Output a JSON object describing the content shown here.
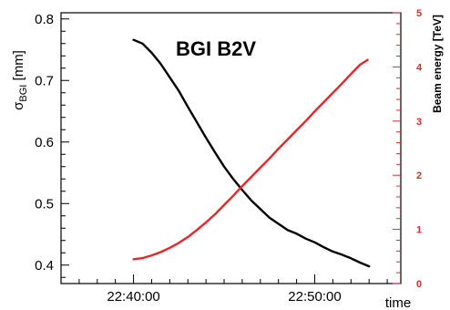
{
  "chart_data": {
    "type": "line",
    "title": "BGI B2V",
    "xlabel": "time",
    "ylabel_main": "σ",
    "ylabel_sub": "BGI",
    "ylabel_unit": " [mm]",
    "y2label": "Beam energy [TeV]",
    "x_ticks": [
      {
        "value": "22:40:00",
        "label": "22:40:00"
      },
      {
        "value": "22:50:00",
        "label": "22:50:00"
      }
    ],
    "xlim": [
      "22:36:00",
      "22:54:45"
    ],
    "ylim": [
      0.37,
      0.81
    ],
    "y_ticks": [
      "0.4",
      "0.5",
      "0.6",
      "0.7",
      "0.8"
    ],
    "y2lim": [
      0,
      5
    ],
    "y2_ticks": [
      "0",
      "1",
      "2",
      "3",
      "4",
      "5"
    ],
    "colors": {
      "sigma": "#000000",
      "energy": "#e8262a",
      "axis2": "#e8262a"
    },
    "series": [
      {
        "axis": "left",
        "color": "#000000",
        "x": [
          "22:40:00",
          "22:40:30",
          "22:41:00",
          "22:41:30",
          "22:42:00",
          "22:42:30",
          "22:43:00",
          "22:43:30",
          "22:44:00",
          "22:44:30",
          "22:45:00",
          "22:45:30",
          "22:46:00",
          "22:46:30",
          "22:47:00",
          "22:47:30",
          "22:48:00",
          "22:48:30",
          "22:49:00",
          "22:49:30",
          "22:50:00",
          "22:50:30",
          "22:51:00",
          "22:51:30",
          "22:52:00",
          "22:52:30",
          "22:53:00"
        ],
        "values": [
          0.766,
          0.76,
          0.745,
          0.727,
          0.705,
          0.683,
          0.657,
          0.632,
          0.607,
          0.583,
          0.56,
          0.54,
          0.522,
          0.505,
          0.491,
          0.477,
          0.467,
          0.457,
          0.451,
          0.443,
          0.437,
          0.429,
          0.422,
          0.417,
          0.411,
          0.404,
          0.398
        ]
      },
      {
        "axis": "right",
        "color": "#e8262a",
        "x": [
          "22:40:00",
          "22:40:30",
          "22:41:00",
          "22:41:30",
          "22:42:00",
          "22:42:30",
          "22:43:00",
          "22:43:30",
          "22:44:00",
          "22:44:30",
          "22:45:00",
          "22:45:30",
          "22:46:00",
          "22:46:30",
          "22:47:00",
          "22:47:30",
          "22:48:00",
          "22:48:30",
          "22:49:00",
          "22:49:30",
          "22:50:00",
          "22:50:30",
          "22:51:00",
          "22:51:30",
          "22:52:00",
          "22:52:30",
          "22:52:55"
        ],
        "values": [
          0.45,
          0.47,
          0.52,
          0.58,
          0.66,
          0.75,
          0.86,
          0.99,
          1.13,
          1.28,
          1.45,
          1.62,
          1.8,
          1.97,
          2.14,
          2.31,
          2.49,
          2.66,
          2.83,
          3.0,
          3.18,
          3.35,
          3.52,
          3.69,
          3.87,
          4.04,
          4.13
        ]
      }
    ]
  }
}
